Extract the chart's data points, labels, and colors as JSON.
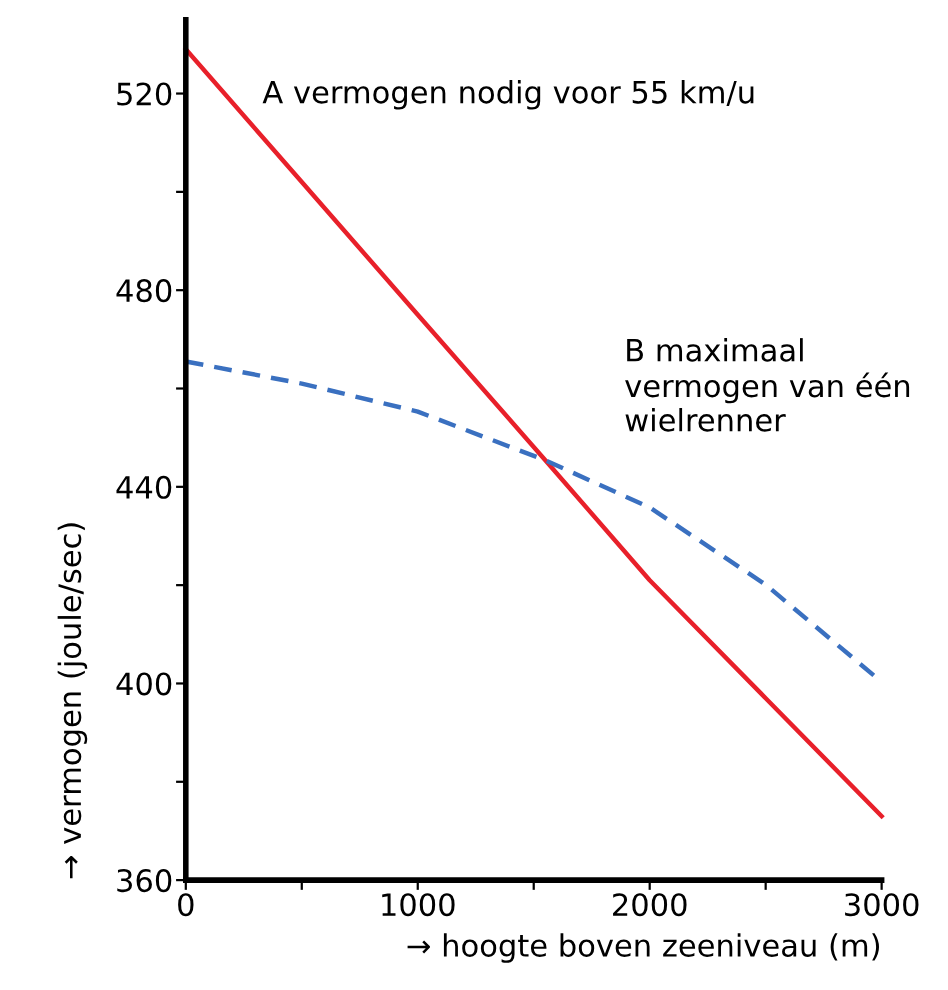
{
  "chart_data": {
    "type": "line",
    "xlabel": "→ hoogte boven zeeniveau (m)",
    "ylabel": "→ vermogen (joule/sec)",
    "x": [
      0,
      500,
      1000,
      1550,
      2000,
      2500,
      3000
    ],
    "series": [
      {
        "name": "A vermogen nodig voor 55 km/u",
        "color": "#e8202a",
        "line_style": "solid",
        "values": [
          529,
          502,
          475,
          445.4,
          421,
          397,
          373
        ]
      },
      {
        "name": "B maximaal vermogen van één wielrenner",
        "color": "#3a70c0",
        "line_style": "dashed",
        "values": [
          465.5,
          461,
          455.3,
          445.4,
          435.8,
          420.1,
          400.3
        ]
      }
    ],
    "xlim": [
      0,
      3000
    ],
    "ylim": [
      360,
      535
    ],
    "xticks": [
      0,
      {
        "value": 500,
        "label": null
      },
      1000,
      {
        "value": 1500,
        "label": null
      },
      2000,
      {
        "value": 2500,
        "label": null
      },
      3000
    ],
    "yticks": [
      360,
      {
        "value": 380,
        "label": null
      },
      400,
      {
        "value": 420,
        "label": null
      },
      440,
      {
        "value": 460,
        "label": null
      },
      480,
      {
        "value": 500,
        "label": null
      },
      520
    ],
    "grid": false,
    "legend": false
  }
}
